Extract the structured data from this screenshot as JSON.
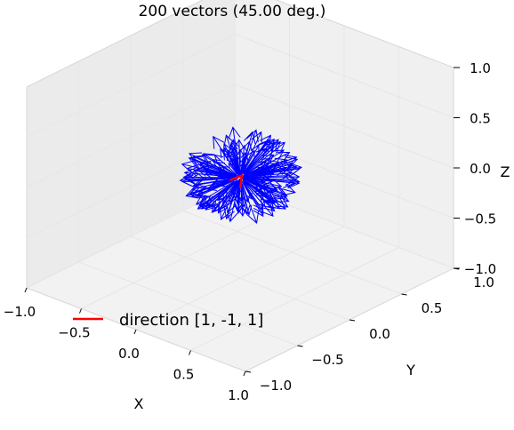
{
  "chart_data": {
    "type": "quiver3d",
    "title": "200 vectors (45.00 deg.)",
    "xlabel": "X",
    "ylabel": "Y",
    "zlabel": "Z",
    "xlim": [
      -1.0,
      1.0
    ],
    "ylim": [
      -1.0,
      1.0
    ],
    "zlim": [
      -1.0,
      1.0
    ],
    "x_ticks": [
      "−1.0",
      "−0.5",
      "0.0",
      "0.5",
      "1.0"
    ],
    "y_ticks": [
      "−1.0",
      "−0.5",
      "0.0",
      "0.5",
      "1.0"
    ],
    "z_ticks": [
      "−1.0",
      "−0.5",
      "0.0",
      "0.5",
      "1.0"
    ],
    "grid": true,
    "legend_position": "lower-left",
    "vector_count": 200,
    "cone_angle_deg": 45.0,
    "vector_length": 0.5,
    "vector_color": "#0000ff",
    "direction": {
      "label": "direction [1, -1, 1]",
      "vector": [
        1,
        -1,
        1
      ],
      "color": "#ff0000"
    },
    "pane_color": "#f2f2f2",
    "grid_color": "#e6e6e6"
  }
}
